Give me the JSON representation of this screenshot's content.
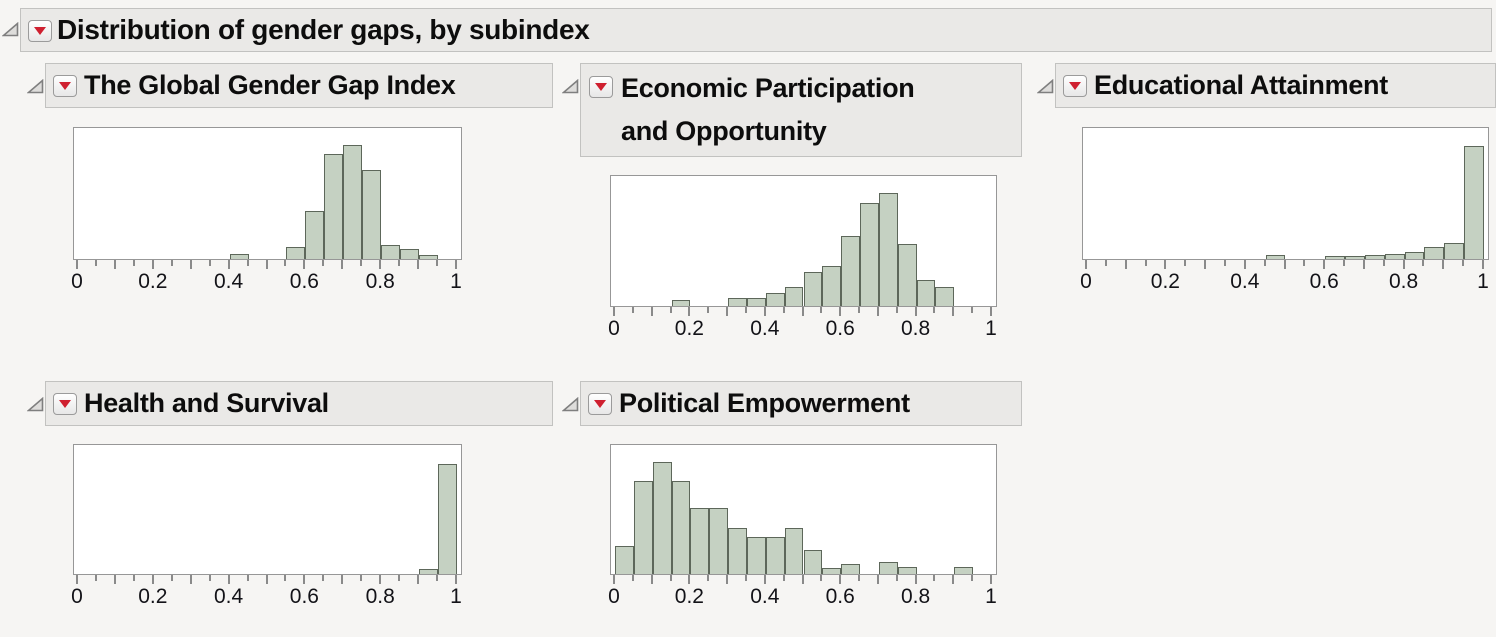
{
  "header": {
    "title": "Distribution of gender gaps, by subindex"
  },
  "icons": {
    "disclosure_open": "open-wedge-triangle",
    "red_triangle_menu": "red-down-triangle",
    "red_triangle_glyph": "▼"
  },
  "colors": {
    "background": "#f6f5f3",
    "header_bg": "#eae9e7",
    "header_border": "#c2c2c0",
    "plot_frame": "#979797",
    "axis": "#8a8a8a",
    "bar_fill": "#c5d1c2",
    "bar_edge": "#5d675a",
    "red_triangle": "#cf2030",
    "axis_label": "#131318"
  },
  "axis": {
    "range": [
      0,
      1
    ],
    "tick_label_values": [
      0,
      0.2,
      0.4,
      0.6,
      0.8,
      1
    ],
    "tick_labels": [
      "0",
      "0.2",
      "0.4",
      "0.6",
      "0.8",
      "1"
    ],
    "minor_tick_step": 0.05,
    "major_tick_step": 0.1
  },
  "chart_data": [
    {
      "type": "bar",
      "title": "The Global Gender Gap Index",
      "title_lines": [
        "The Global Gender Gap Index"
      ],
      "xlabel": "",
      "x_range": [
        0,
        1
      ],
      "bin_width": 0.05,
      "height_units": "fraction_of_plot_height",
      "bins": [
        {
          "x": 0.4,
          "h": 0.04
        },
        {
          "x": 0.55,
          "h": 0.09
        },
        {
          "x": 0.6,
          "h": 0.37
        },
        {
          "x": 0.65,
          "h": 0.8
        },
        {
          "x": 0.7,
          "h": 0.87
        },
        {
          "x": 0.75,
          "h": 0.68
        },
        {
          "x": 0.8,
          "h": 0.11
        },
        {
          "x": 0.85,
          "h": 0.08
        },
        {
          "x": 0.9,
          "h": 0.03
        }
      ]
    },
    {
      "type": "bar",
      "title": "Economic Participation and Opportunity",
      "title_lines": [
        "Economic Participation",
        "and Opportunity"
      ],
      "xlabel": "",
      "x_range": [
        0,
        1
      ],
      "bin_width": 0.05,
      "height_units": "fraction_of_plot_height",
      "bins": [
        {
          "x": 0.15,
          "h": 0.045
        },
        {
          "x": 0.3,
          "h": 0.065
        },
        {
          "x": 0.35,
          "h": 0.065
        },
        {
          "x": 0.4,
          "h": 0.1
        },
        {
          "x": 0.45,
          "h": 0.15
        },
        {
          "x": 0.5,
          "h": 0.26
        },
        {
          "x": 0.55,
          "h": 0.31
        },
        {
          "x": 0.6,
          "h": 0.54
        },
        {
          "x": 0.65,
          "h": 0.79
        },
        {
          "x": 0.7,
          "h": 0.87
        },
        {
          "x": 0.75,
          "h": 0.48
        },
        {
          "x": 0.8,
          "h": 0.2
        },
        {
          "x": 0.85,
          "h": 0.15
        }
      ]
    },
    {
      "type": "bar",
      "title": "Educational Attainment",
      "title_lines": [
        "Educational Attainment"
      ],
      "xlabel": "",
      "x_range": [
        0,
        1
      ],
      "bin_width": 0.05,
      "height_units": "fraction_of_plot_height",
      "bins": [
        {
          "x": 0.45,
          "h": 0.028
        },
        {
          "x": 0.6,
          "h": 0.022
        },
        {
          "x": 0.65,
          "h": 0.022
        },
        {
          "x": 0.7,
          "h": 0.03
        },
        {
          "x": 0.75,
          "h": 0.035
        },
        {
          "x": 0.8,
          "h": 0.053
        },
        {
          "x": 0.85,
          "h": 0.088
        },
        {
          "x": 0.9,
          "h": 0.126
        },
        {
          "x": 0.95,
          "h": 0.86
        }
      ]
    },
    {
      "type": "bar",
      "title": "Health and Survival",
      "title_lines": [
        "Health and Survival"
      ],
      "xlabel": "",
      "x_range": [
        0,
        1
      ],
      "bin_width": 0.05,
      "height_units": "fraction_of_plot_height",
      "bins": [
        {
          "x": 0.9,
          "h": 0.038
        },
        {
          "x": 0.95,
          "h": 0.856
        }
      ]
    },
    {
      "type": "bar",
      "title": "Political Empowerment",
      "title_lines": [
        "Political Empowerment"
      ],
      "xlabel": "",
      "x_range": [
        0,
        1
      ],
      "bin_width": 0.05,
      "height_units": "fraction_of_plot_height",
      "bins": [
        {
          "x": 0.0,
          "h": 0.22
        },
        {
          "x": 0.05,
          "h": 0.72
        },
        {
          "x": 0.1,
          "h": 0.87
        },
        {
          "x": 0.15,
          "h": 0.72
        },
        {
          "x": 0.2,
          "h": 0.51
        },
        {
          "x": 0.25,
          "h": 0.51
        },
        {
          "x": 0.3,
          "h": 0.36
        },
        {
          "x": 0.35,
          "h": 0.29
        },
        {
          "x": 0.4,
          "h": 0.29
        },
        {
          "x": 0.45,
          "h": 0.36
        },
        {
          "x": 0.5,
          "h": 0.19
        },
        {
          "x": 0.55,
          "h": 0.05
        },
        {
          "x": 0.6,
          "h": 0.08
        },
        {
          "x": 0.7,
          "h": 0.09
        },
        {
          "x": 0.75,
          "h": 0.055
        },
        {
          "x": 0.9,
          "h": 0.055
        }
      ]
    }
  ]
}
